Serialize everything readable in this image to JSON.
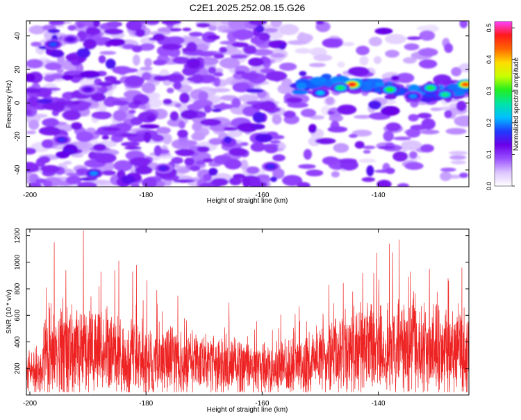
{
  "page": {
    "title": "C2E1.2025.252.08.15.G26"
  },
  "chart_data": [
    {
      "type": "heatmap",
      "xlabel": "Height of straight line (km)",
      "ylabel": "Frequency (Hz)",
      "xlim": [
        -200.6,
        -124.4
      ],
      "ylim": [
        -50,
        49
      ],
      "xticks": [
        -200,
        -180,
        -160,
        -140
      ],
      "yticks": [
        -40,
        -20,
        0,
        20,
        40
      ],
      "colorbar": {
        "label": "Normalized spectral amplitude",
        "range": [
          0,
          0.52
        ],
        "ticks": [
          "0.0",
          "0.1",
          "0.2",
          "0.3",
          "0.4",
          "0.5"
        ],
        "colors": [
          "#ffffff",
          "#dcc4ff",
          "#9a50ff",
          "#6a00e8",
          "#1f3cff",
          "#00bfff",
          "#00e4a6",
          "#22ee22",
          "#c8ff00",
          "#ffdd00",
          "#ff6600",
          "#ff1a1a",
          "#ff40ff"
        ]
      },
      "background_blobs": 1200,
      "band": {
        "x_range": [
          -154,
          -124.4
        ],
        "frequency_center": [
          6,
          12
        ],
        "frequency_halfwidth": 5,
        "peaks": [
          {
            "x": -144.5,
            "y": 11,
            "v": 0.47
          },
          {
            "x": -125,
            "y": 11,
            "v": 0.44
          },
          {
            "x": -146.5,
            "y": 9,
            "v": 0.28
          },
          {
            "x": -138,
            "y": 8,
            "v": 0.3
          },
          {
            "x": -131,
            "y": 9,
            "v": 0.29
          },
          {
            "x": -128.5,
            "y": 5,
            "v": 0.27
          },
          {
            "x": -150,
            "y": 6,
            "v": 0.22
          },
          {
            "x": -134,
            "y": 4,
            "v": 0.2
          }
        ]
      },
      "hotspots": [
        {
          "x": -189,
          "y": -42,
          "v": 0.2
        },
        {
          "x": -196,
          "y": 35,
          "v": 0.18
        },
        {
          "x": -194.5,
          "y": -22,
          "v": 0.16
        },
        {
          "x": -177,
          "y": -39,
          "v": 0.15
        },
        {
          "x": -158.5,
          "y": -38,
          "v": 0.16
        },
        {
          "x": -190,
          "y": 8,
          "v": 0.14
        },
        {
          "x": -193,
          "y": 38,
          "v": 0.14
        }
      ]
    },
    {
      "type": "line",
      "xlabel": "Height of straight line (km)",
      "ylabel": "SNR (10 * v/v)",
      "xlim": [
        -200.6,
        -124.4
      ],
      "ylim": [
        0,
        1250
      ],
      "xticks": [
        -200,
        -180,
        -160,
        -140
      ],
      "yticks": [
        200,
        400,
        600,
        800,
        1000,
        1200
      ],
      "color": "#ee2222",
      "samples": 2400,
      "envelope": [
        {
          "x": -200.6,
          "base": 180,
          "amp": 150
        },
        {
          "x": -198,
          "base": 180,
          "amp": 170
        },
        {
          "x": -197.5,
          "base": 330,
          "amp": 330
        },
        {
          "x": -192,
          "base": 340,
          "amp": 340
        },
        {
          "x": -186,
          "base": 320,
          "amp": 330
        },
        {
          "x": -180,
          "base": 270,
          "amp": 270
        },
        {
          "x": -172,
          "base": 240,
          "amp": 230
        },
        {
          "x": -165,
          "base": 220,
          "amp": 210
        },
        {
          "x": -158,
          "base": 200,
          "amp": 190
        },
        {
          "x": -153,
          "base": 220,
          "amp": 210
        },
        {
          "x": -149,
          "base": 280,
          "amp": 280
        },
        {
          "x": -144,
          "base": 330,
          "amp": 330
        },
        {
          "x": -138,
          "base": 340,
          "amp": 350
        },
        {
          "x": -131,
          "base": 320,
          "amp": 330
        },
        {
          "x": -124.4,
          "base": 310,
          "amp": 330
        }
      ],
      "spikes": [
        {
          "x": -190.8,
          "y": 1240
        },
        {
          "x": -195.8,
          "y": 1150
        },
        {
          "x": -136.4,
          "y": 1170
        },
        {
          "x": -184.7,
          "y": 1010
        },
        {
          "x": -193.8,
          "y": 940
        },
        {
          "x": -185.4,
          "y": 940
        },
        {
          "x": -182.3,
          "y": 930
        },
        {
          "x": -142.7,
          "y": 920
        },
        {
          "x": -131.2,
          "y": 950
        },
        {
          "x": -125.6,
          "y": 960
        },
        {
          "x": -134.8,
          "y": 890
        },
        {
          "x": -148.5,
          "y": 830
        },
        {
          "x": -197.2,
          "y": 810
        },
        {
          "x": -188.1,
          "y": 820
        },
        {
          "x": -139.9,
          "y": 870
        },
        {
          "x": -128.0,
          "y": 880
        }
      ]
    }
  ]
}
